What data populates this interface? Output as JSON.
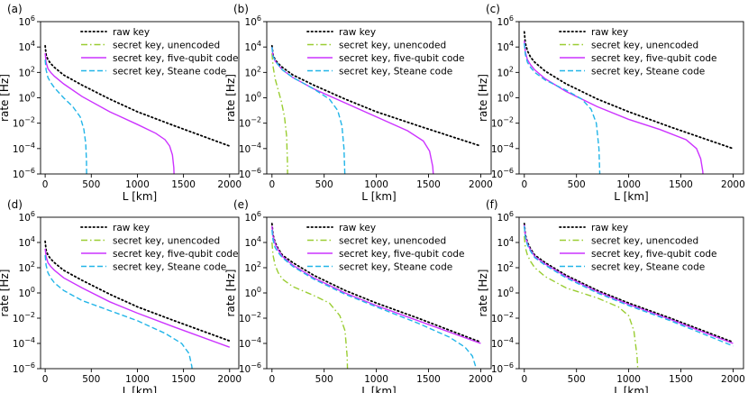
{
  "figure": {
    "colors": {
      "raw": "#000000",
      "unencoded": "#9acd32",
      "five_qubit": "#cc33ff",
      "steane": "#22b5e8",
      "frame": "#000000"
    }
  },
  "chart_data": [
    {
      "type": "line",
      "panel_label": "(a)",
      "xlabel": "L [km]",
      "ylabel": "rate [Hz]",
      "xlim": [
        -50,
        2100
      ],
      "ylim_log10": [
        -6,
        6
      ],
      "xticks": [
        "0",
        "500",
        "1000",
        "1500",
        "2000"
      ],
      "yticks": [
        {
          "base": "10",
          "exp": "6"
        },
        {
          "base": "10",
          "exp": "4"
        },
        {
          "base": "10",
          "exp": "2"
        },
        {
          "base": "10",
          "exp": "0"
        },
        {
          "base": "10",
          "exp": "−2"
        },
        {
          "base": "10",
          "exp": "−4"
        },
        {
          "base": "10",
          "exp": "−6"
        }
      ],
      "legend": [
        "raw key",
        "secret key, unencoded",
        "secret key, five-qubit code",
        "secret key, Steane code"
      ],
      "series": [
        {
          "name": "raw key",
          "style": "dotted",
          "color_key": "raw",
          "x": [
            0,
            10,
            30,
            60,
            100,
            200,
            400,
            700,
            1000,
            1400,
            2000
          ],
          "log10_y": [
            4.1,
            3.4,
            3.0,
            2.7,
            2.4,
            1.8,
            1.0,
            -0.1,
            -1.1,
            -2.2,
            -3.8
          ]
        },
        {
          "name": "secret key, five-qubit code",
          "style": "solid",
          "color_key": "five_qubit",
          "x": [
            0,
            10,
            30,
            60,
            100,
            200,
            400,
            700,
            1000,
            1200,
            1300,
            1350,
            1380,
            1395,
            1400
          ],
          "log10_y": [
            3.5,
            2.8,
            2.3,
            2.0,
            1.7,
            1.1,
            0.1,
            -1.1,
            -2.1,
            -2.8,
            -3.3,
            -3.8,
            -4.5,
            -5.5,
            -6.5
          ]
        },
        {
          "name": "secret key, Steane code",
          "style": "dashed",
          "color_key": "steane",
          "x": [
            0,
            10,
            30,
            60,
            100,
            200,
            300,
            380,
            420,
            440,
            448,
            450
          ],
          "log10_y": [
            3.0,
            2.2,
            1.6,
            1.2,
            0.8,
            0.0,
            -0.7,
            -1.5,
            -2.5,
            -3.6,
            -5.0,
            -6.5
          ]
        }
      ]
    },
    {
      "type": "line",
      "panel_label": "(b)",
      "xlabel": "L [km]",
      "ylabel": "rate [Hz]",
      "xlim": [
        -50,
        2100
      ],
      "ylim_log10": [
        -6,
        6
      ],
      "xticks": [
        "0",
        "500",
        "1000",
        "1500",
        "2000"
      ],
      "yticks": [
        {
          "base": "10",
          "exp": "6"
        },
        {
          "base": "10",
          "exp": "4"
        },
        {
          "base": "10",
          "exp": "2"
        },
        {
          "base": "10",
          "exp": "0"
        },
        {
          "base": "10",
          "exp": "−2"
        },
        {
          "base": "10",
          "exp": "−4"
        },
        {
          "base": "10",
          "exp": "−6"
        }
      ],
      "legend": [
        "raw key",
        "secret key, unencoded",
        "secret key, five-qubit code",
        "secret key, Steane code"
      ],
      "series": [
        {
          "name": "raw key",
          "style": "dotted",
          "color_key": "raw",
          "x": [
            0,
            10,
            30,
            60,
            100,
            200,
            400,
            700,
            1000,
            1400,
            2000
          ],
          "log10_y": [
            4.1,
            3.4,
            3.0,
            2.7,
            2.4,
            1.8,
            1.0,
            -0.1,
            -1.1,
            -2.2,
            -3.8
          ]
        },
        {
          "name": "secret key, unencoded",
          "style": "dashdot",
          "color_key": "unencoded",
          "x": [
            0,
            10,
            30,
            60,
            90,
            120,
            140,
            148,
            150
          ],
          "log10_y": [
            3.5,
            2.5,
            1.5,
            0.6,
            -0.3,
            -1.5,
            -3.0,
            -5.0,
            -6.5
          ]
        },
        {
          "name": "secret key, five-qubit code",
          "style": "solid",
          "color_key": "five_qubit",
          "x": [
            0,
            10,
            30,
            60,
            100,
            200,
            400,
            700,
            1000,
            1300,
            1450,
            1510,
            1540,
            1550
          ],
          "log10_y": [
            4.0,
            3.3,
            2.9,
            2.6,
            2.2,
            1.6,
            0.7,
            -0.4,
            -1.5,
            -2.6,
            -3.4,
            -4.2,
            -5.4,
            -6.5
          ]
        },
        {
          "name": "secret key, Steane code",
          "style": "dashed",
          "color_key": "steane",
          "x": [
            0,
            10,
            30,
            60,
            100,
            200,
            400,
            550,
            630,
            670,
            690,
            700
          ],
          "log10_y": [
            4.0,
            3.3,
            2.9,
            2.6,
            2.2,
            1.6,
            0.7,
            -0.1,
            -1.0,
            -2.2,
            -4.0,
            -6.5
          ]
        }
      ]
    },
    {
      "type": "line",
      "panel_label": "(c)",
      "xlabel": "L [km]",
      "ylabel": "rate [Hz]",
      "xlim": [
        -50,
        2100
      ],
      "ylim_log10": [
        -6,
        6
      ],
      "xticks": [
        "0",
        "500",
        "1000",
        "1500",
        "2000"
      ],
      "yticks": [
        {
          "base": "10",
          "exp": "6"
        },
        {
          "base": "10",
          "exp": "4"
        },
        {
          "base": "10",
          "exp": "2"
        },
        {
          "base": "10",
          "exp": "0"
        },
        {
          "base": "10",
          "exp": "−2"
        },
        {
          "base": "10",
          "exp": "−4"
        },
        {
          "base": "10",
          "exp": "−6"
        }
      ],
      "legend": [
        "raw key",
        "secret key, unencoded",
        "secret key, five-qubit code",
        "secret key, Steane code"
      ],
      "series": [
        {
          "name": "raw key",
          "style": "dotted",
          "color_key": "raw",
          "x": [
            0,
            10,
            30,
            60,
            100,
            200,
            400,
            700,
            1000,
            1400,
            2000
          ],
          "log10_y": [
            5.2,
            4.3,
            3.7,
            3.2,
            2.8,
            2.1,
            1.1,
            -0.1,
            -1.1,
            -2.3,
            -4.0
          ]
        },
        {
          "name": "secret key, five-qubit code",
          "style": "solid",
          "color_key": "five_qubit",
          "x": [
            0,
            10,
            30,
            60,
            100,
            200,
            400,
            700,
            1000,
            1300,
            1550,
            1650,
            1690,
            1710,
            1715
          ],
          "log10_y": [
            4.5,
            3.6,
            3.0,
            2.6,
            2.2,
            1.5,
            0.5,
            -0.7,
            -1.7,
            -2.5,
            -3.3,
            -4.0,
            -4.8,
            -5.8,
            -6.5
          ]
        },
        {
          "name": "secret key, Steane code",
          "style": "dashed",
          "color_key": "steane",
          "x": [
            0,
            10,
            30,
            60,
            100,
            200,
            400,
            550,
            640,
            690,
            715,
            725
          ],
          "log10_y": [
            4.3,
            3.4,
            2.8,
            2.4,
            2.0,
            1.4,
            0.6,
            -0.1,
            -0.9,
            -2.0,
            -4.0,
            -6.5
          ]
        }
      ]
    },
    {
      "type": "line",
      "panel_label": "(d)",
      "xlabel": "L [km]",
      "ylabel": "rate [Hz]",
      "xlim": [
        -50,
        2100
      ],
      "ylim_log10": [
        -6,
        6
      ],
      "xticks": [
        "0",
        "500",
        "1000",
        "1500",
        "2000"
      ],
      "yticks": [
        {
          "base": "10",
          "exp": "6"
        },
        {
          "base": "10",
          "exp": "4"
        },
        {
          "base": "10",
          "exp": "2"
        },
        {
          "base": "10",
          "exp": "0"
        },
        {
          "base": "10",
          "exp": "−2"
        },
        {
          "base": "10",
          "exp": "−4"
        },
        {
          "base": "10",
          "exp": "−6"
        }
      ],
      "legend": [
        "raw key",
        "secret key, unencoded",
        "secret key, five-qubit code",
        "secret key, Steane code"
      ],
      "series": [
        {
          "name": "raw key",
          "style": "dotted",
          "color_key": "raw",
          "x": [
            0,
            10,
            30,
            60,
            100,
            200,
            400,
            700,
            1000,
            1400,
            2000
          ],
          "log10_y": [
            4.1,
            3.4,
            3.0,
            2.7,
            2.4,
            1.8,
            1.0,
            -0.1,
            -1.1,
            -2.2,
            -3.8
          ]
        },
        {
          "name": "secret key, five-qubit code",
          "style": "solid",
          "color_key": "five_qubit",
          "x": [
            0,
            10,
            30,
            60,
            100,
            200,
            400,
            700,
            1000,
            1400,
            2000
          ],
          "log10_y": [
            3.5,
            2.9,
            2.4,
            2.1,
            1.8,
            1.2,
            0.4,
            -0.7,
            -1.6,
            -2.7,
            -4.3
          ]
        },
        {
          "name": "secret key, Steane code",
          "style": "dashed",
          "color_key": "steane",
          "x": [
            0,
            10,
            30,
            60,
            100,
            200,
            400,
            700,
            1000,
            1300,
            1480,
            1560,
            1590,
            1600
          ],
          "log10_y": [
            3.0,
            2.2,
            1.6,
            1.2,
            0.8,
            0.2,
            -0.6,
            -1.4,
            -2.2,
            -3.2,
            -4.0,
            -4.8,
            -5.8,
            -6.5
          ]
        }
      ]
    },
    {
      "type": "line",
      "panel_label": "(e)",
      "xlabel": "L [km]",
      "ylabel": "rate [Hz]",
      "xlim": [
        -50,
        2100
      ],
      "ylim_log10": [
        -6,
        6
      ],
      "xticks": [
        "0",
        "500",
        "1000",
        "1500",
        "2000"
      ],
      "yticks": [
        {
          "base": "10",
          "exp": "6"
        },
        {
          "base": "10",
          "exp": "4"
        },
        {
          "base": "10",
          "exp": "2"
        },
        {
          "base": "10",
          "exp": "0"
        },
        {
          "base": "10",
          "exp": "−2"
        },
        {
          "base": "10",
          "exp": "−4"
        },
        {
          "base": "10",
          "exp": "−6"
        }
      ],
      "legend": [
        "raw key",
        "secret key, unencoded",
        "secret key, five-qubit code",
        "secret key, Steane code"
      ],
      "series": [
        {
          "name": "raw key",
          "style": "dotted",
          "color_key": "raw",
          "x": [
            0,
            10,
            30,
            60,
            100,
            200,
            400,
            700,
            1000,
            1400,
            2000
          ],
          "log10_y": [
            5.5,
            4.6,
            4.0,
            3.5,
            3.0,
            2.4,
            1.4,
            0.2,
            -0.8,
            -2.0,
            -3.9
          ]
        },
        {
          "name": "secret key, unencoded",
          "style": "dashdot",
          "color_key": "unencoded",
          "x": [
            0,
            10,
            30,
            60,
            100,
            200,
            400,
            550,
            650,
            700,
            720,
            725
          ],
          "log10_y": [
            4.0,
            3.0,
            2.2,
            1.6,
            1.1,
            0.5,
            -0.2,
            -0.8,
            -1.8,
            -3.0,
            -5.0,
            -6.5
          ]
        },
        {
          "name": "secret key, five-qubit code",
          "style": "solid",
          "color_key": "five_qubit",
          "x": [
            0,
            10,
            30,
            60,
            100,
            200,
            400,
            700,
            1000,
            1400,
            2000
          ],
          "log10_y": [
            5.3,
            4.5,
            3.9,
            3.4,
            2.9,
            2.2,
            1.2,
            0.0,
            -1.0,
            -2.2,
            -4.0
          ]
        },
        {
          "name": "secret key, Steane code",
          "style": "dashed",
          "color_key": "steane",
          "x": [
            0,
            10,
            30,
            60,
            100,
            200,
            400,
            700,
            1000,
            1400,
            1700,
            1850,
            1920,
            1950,
            1960
          ],
          "log10_y": [
            5.0,
            4.2,
            3.6,
            3.2,
            2.8,
            2.1,
            1.1,
            -0.1,
            -1.1,
            -2.4,
            -3.5,
            -4.3,
            -5.0,
            -5.8,
            -6.5
          ]
        }
      ]
    },
    {
      "type": "line",
      "panel_label": "(f)",
      "xlabel": "L [km]",
      "ylabel": "rate [Hz]",
      "xlim": [
        -50,
        2100
      ],
      "ylim_log10": [
        -6,
        6
      ],
      "xticks": [
        "0",
        "500",
        "1000",
        "1500",
        "2000"
      ],
      "yticks": [
        {
          "base": "10",
          "exp": "6"
        },
        {
          "base": "10",
          "exp": "4"
        },
        {
          "base": "10",
          "exp": "2"
        },
        {
          "base": "10",
          "exp": "0"
        },
        {
          "base": "10",
          "exp": "−2"
        },
        {
          "base": "10",
          "exp": "−4"
        },
        {
          "base": "10",
          "exp": "−6"
        }
      ],
      "legend": [
        "raw key",
        "secret key, unencoded",
        "secret key, five-qubit code",
        "secret key, Steane code"
      ],
      "series": [
        {
          "name": "raw key",
          "style": "dotted",
          "color_key": "raw",
          "x": [
            0,
            10,
            30,
            60,
            100,
            200,
            400,
            700,
            1000,
            1400,
            2000
          ],
          "log10_y": [
            5.5,
            4.6,
            4.0,
            3.5,
            3.0,
            2.4,
            1.4,
            0.2,
            -0.8,
            -2.0,
            -3.9
          ]
        },
        {
          "name": "secret key, unencoded",
          "style": "dashdot",
          "color_key": "unencoded",
          "x": [
            0,
            10,
            30,
            60,
            100,
            200,
            400,
            700,
            900,
            1000,
            1050,
            1080,
            1090
          ],
          "log10_y": [
            4.5,
            3.6,
            3.0,
            2.5,
            2.0,
            1.3,
            0.4,
            -0.4,
            -1.1,
            -1.8,
            -3.0,
            -5.0,
            -6.5
          ]
        },
        {
          "name": "secret key, five-qubit code",
          "style": "solid",
          "color_key": "five_qubit",
          "x": [
            0,
            10,
            30,
            60,
            100,
            200,
            400,
            700,
            1000,
            1400,
            2000
          ],
          "log10_y": [
            5.4,
            4.5,
            3.9,
            3.4,
            2.9,
            2.3,
            1.3,
            0.1,
            -0.9,
            -2.1,
            -4.0
          ]
        },
        {
          "name": "secret key, Steane code",
          "style": "dashed",
          "color_key": "steane",
          "x": [
            0,
            10,
            30,
            60,
            100,
            200,
            400,
            700,
            1000,
            1400,
            2000
          ],
          "log10_y": [
            5.3,
            4.4,
            3.8,
            3.3,
            2.8,
            2.2,
            1.2,
            0.0,
            -1.0,
            -2.2,
            -4.2
          ]
        }
      ]
    }
  ]
}
